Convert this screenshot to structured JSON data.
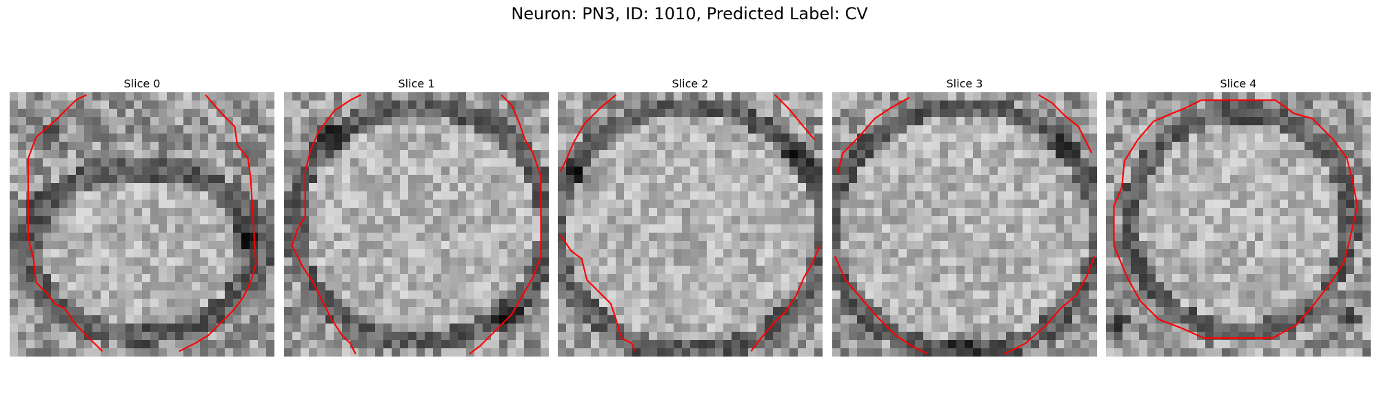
{
  "figure": {
    "title": "Neuron: PN3, ID: 1010, Predicted Label: CV"
  },
  "slices": [
    {
      "title": "Slice 0"
    },
    {
      "title": "Slice 1"
    },
    {
      "title": "Slice 2"
    },
    {
      "title": "Slice 3"
    },
    {
      "title": "Slice 4"
    }
  ],
  "colors": {
    "contour": "#ff0000"
  }
}
